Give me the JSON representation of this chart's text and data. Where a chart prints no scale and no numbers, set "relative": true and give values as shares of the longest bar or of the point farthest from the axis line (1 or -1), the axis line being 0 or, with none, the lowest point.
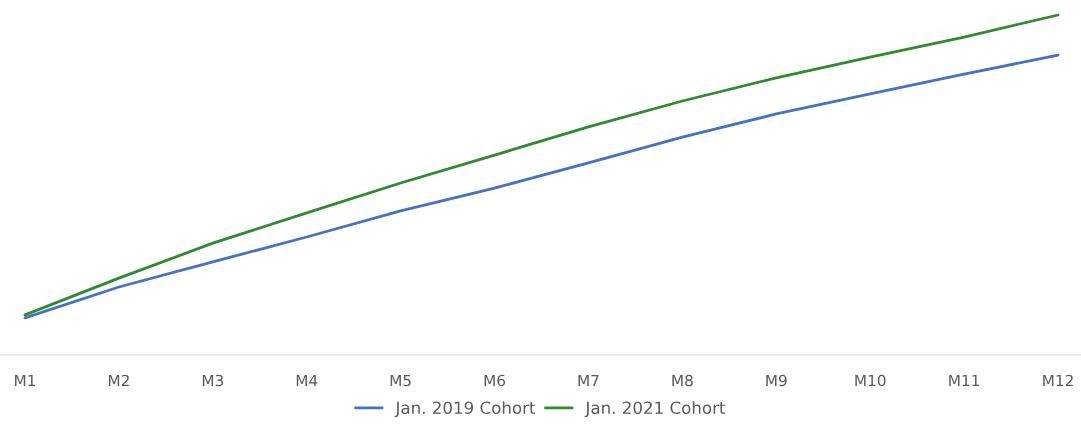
{
  "chart_data": {
    "type": "line",
    "relative": true,
    "categories": [
      "M1",
      "M2",
      "M3",
      "M4",
      "M5",
      "M6",
      "M7",
      "M8",
      "M9",
      "M10",
      "M11",
      "M12"
    ],
    "series": [
      {
        "name": "Jan. 2019 Cohort",
        "color": "#4472c4",
        "values": [
          0.109,
          0.2,
          0.274,
          0.347,
          0.424,
          0.491,
          0.565,
          0.641,
          0.709,
          0.768,
          0.826,
          0.882
        ]
      },
      {
        "name": "Jan. 2021 Cohort",
        "color": "#2e8b2e",
        "values": [
          0.118,
          0.226,
          0.329,
          0.418,
          0.506,
          0.588,
          0.671,
          0.747,
          0.815,
          0.876,
          0.935,
          1
        ]
      }
    ],
    "legend": "bottom",
    "grid": false,
    "marker": "none",
    "line_style": "solid"
  }
}
